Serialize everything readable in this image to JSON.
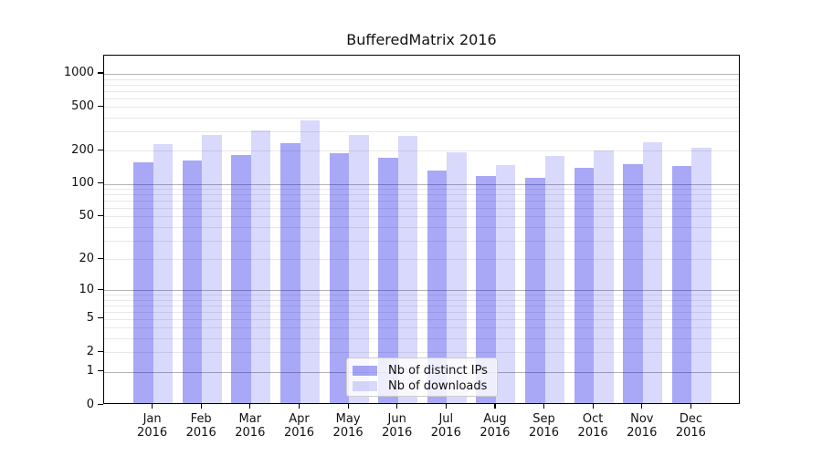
{
  "chart_data": {
    "type": "bar",
    "title": "BufferedMatrix 2016",
    "year": "2016",
    "categories": [
      "Jan",
      "Feb",
      "Mar",
      "Apr",
      "May",
      "Jun",
      "Jul",
      "Aug",
      "Sep",
      "Oct",
      "Nov",
      "Dec"
    ],
    "series": [
      {
        "name": "Nb of distinct IPs",
        "color": "rgba(0,0,230,0.34)",
        "values": [
          151,
          157,
          176,
          226,
          183,
          166,
          127,
          114,
          109,
          135,
          145,
          140
        ]
      },
      {
        "name": "Nb of downloads",
        "color": "rgba(0,0,230,0.15)",
        "values": [
          221,
          268,
          295,
          364,
          268,
          263,
          186,
          143,
          173,
          194,
          230,
          205
        ]
      }
    ],
    "yscale": "log10(value+1)",
    "y_ticks": [
      0,
      1,
      2,
      5,
      10,
      20,
      50,
      100,
      200,
      500,
      1000
    ],
    "ylim": [
      0,
      1468
    ],
    "grid": {
      "major_at": [
        1,
        10,
        100,
        1000
      ],
      "minor_mantissas": [
        2,
        3,
        4,
        5,
        6,
        7,
        8,
        9
      ],
      "major_color": "#b3b3b3",
      "minor_color": "#e9e9e9"
    },
    "legend": {
      "position": "lower center",
      "items": [
        "Nb of distinct IPs",
        "Nb of downloads"
      ]
    }
  }
}
